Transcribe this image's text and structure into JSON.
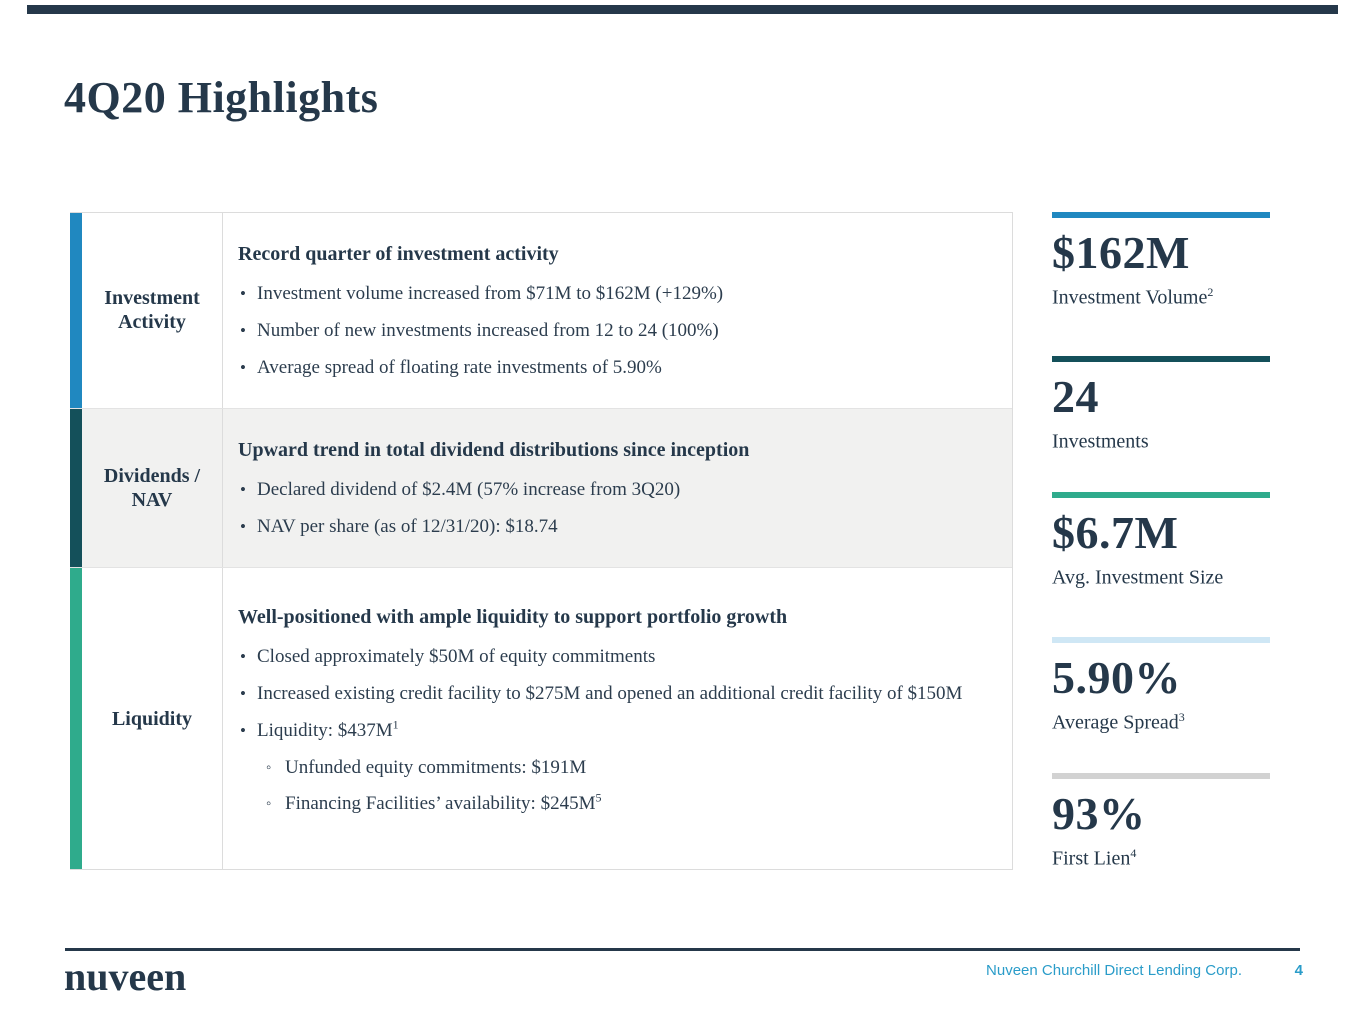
{
  "slide": {
    "title": "4Q20 Highlights",
    "table": {
      "rows": [
        {
          "label": "Investment Activity",
          "heading": "Record quarter of investment activity",
          "bullets": [
            {
              "text": "Investment volume increased from $71M to $162M (+129%)",
              "sup": ""
            },
            {
              "text": "Number of new investments increased from 12 to 24 (100%)",
              "sup": ""
            },
            {
              "text": "Average spread of floating rate investments of 5.90%",
              "sup": ""
            }
          ]
        },
        {
          "label": "Dividends / NAV",
          "heading": "Upward trend in total dividend distributions since inception",
          "bullets": [
            {
              "text": "Declared dividend of $2.4M (57% increase from 3Q20)",
              "sup": ""
            },
            {
              "text": "NAV per share (as of 12/31/20): $18.74",
              "sup": ""
            }
          ]
        },
        {
          "label": "Liquidity",
          "heading": "Well-positioned with ample liquidity to support portfolio growth",
          "bullets": [
            {
              "text": "Closed approximately $50M of equity commitments",
              "sup": ""
            },
            {
              "text": "Increased existing credit facility to $275M and opened an additional credit facility of $150M",
              "sup": ""
            },
            {
              "text": "Liquidity: $437M",
              "sup": "1"
            },
            {
              "text": "Unfunded equity commitments: $191M",
              "sup": ""
            },
            {
              "text": "Financing Facilities’ availability: $245M",
              "sup": "5"
            }
          ]
        }
      ]
    },
    "stats": [
      {
        "value": "$162M",
        "label": "Investment Volume",
        "sup": "2",
        "bar_color": "#2088c0"
      },
      {
        "value": "24",
        "label": "Investments",
        "sup": "",
        "bar_color": "#14505a"
      },
      {
        "value": "$6.7M",
        "label": "Avg. Investment Size",
        "sup": "",
        "bar_color": "#2fab8c"
      },
      {
        "value": "5.90%",
        "label": "Average Spread",
        "sup": "3",
        "bar_color": "#cfe7f5"
      },
      {
        "value": "93%",
        "label": "First Lien",
        "sup": "4",
        "bar_color": "#d2d2d2"
      }
    ],
    "footer": {
      "logo": "nuveen",
      "company": "Nuveen Churchill Direct Lending Corp.",
      "page": "4"
    },
    "colors": {
      "navy": "#25384a",
      "accent_blue": "#2088c0",
      "accent_teal": "#14505a",
      "accent_green": "#2fab8c",
      "accent_lightblue": "#cfe7f5",
      "accent_gray": "#d2d2d2",
      "row_alt_background": "#f1f1f0",
      "table_border": "#dcdcdc",
      "footer_text_blue": "#2a9cc9"
    }
  }
}
